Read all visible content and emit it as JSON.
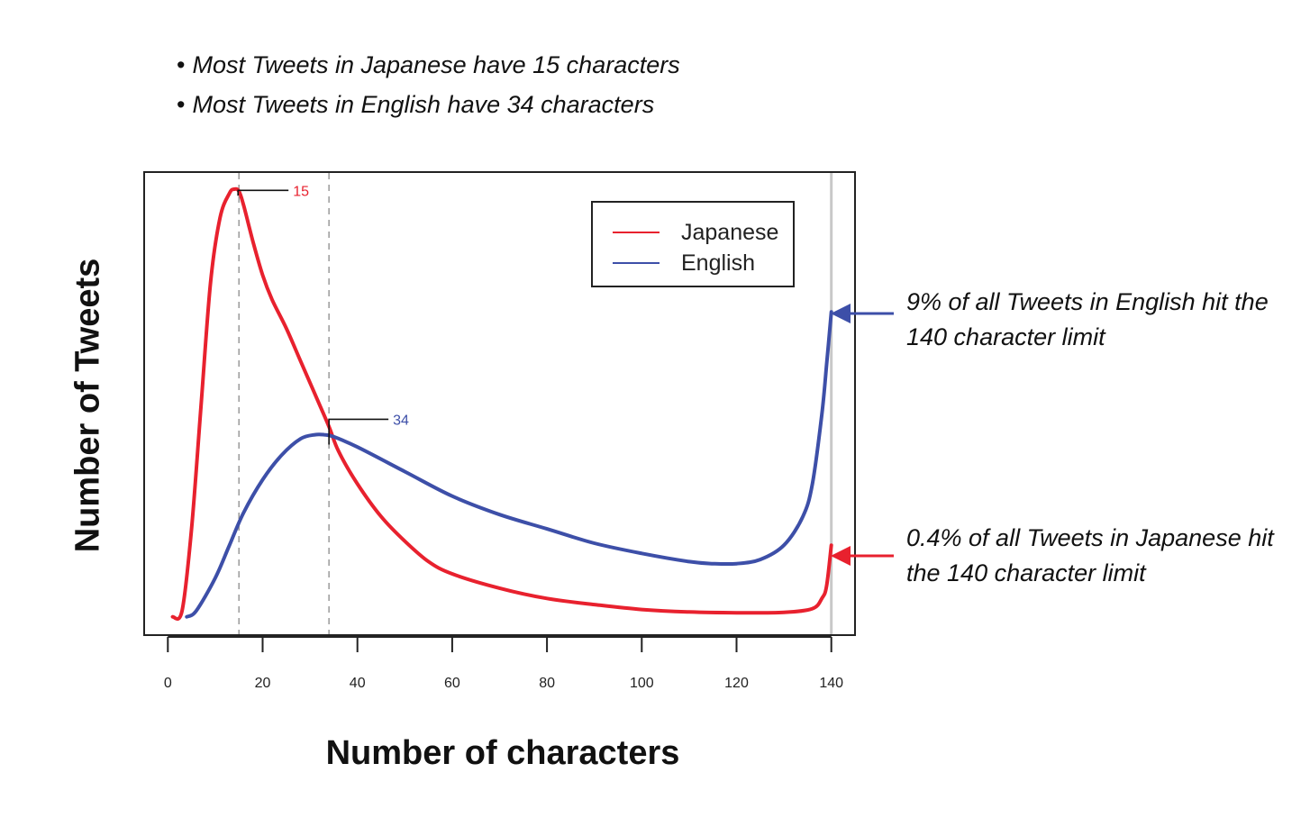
{
  "bullets": [
    "Most Tweets in Japanese have 15 characters",
    "Most Tweets in English have 34 characters"
  ],
  "colors": {
    "japanese": "#e8212e",
    "english": "#3d4fa8",
    "axis": "#222222",
    "guide": "#9a9a9a"
  },
  "chart_data": {
    "type": "line",
    "xlabel": "Number of characters",
    "ylabel": "Number of Tweets",
    "xlim": [
      -5,
      145
    ],
    "ylim": [
      0,
      105
    ],
    "xticks": [
      "0",
      "20",
      "40",
      "60",
      "80",
      "100",
      "120",
      "140"
    ],
    "yticks_shown": false,
    "grid": false,
    "legend": {
      "position": "top-right",
      "entries": [
        "Japanese",
        "English"
      ]
    },
    "series": [
      {
        "name": "Japanese",
        "x": [
          1,
          3,
          5,
          7,
          9,
          11,
          13,
          14,
          15,
          16,
          18,
          20,
          22,
          25,
          28,
          31,
          34,
          36,
          40,
          45,
          50,
          55,
          60,
          70,
          80,
          90,
          100,
          110,
          120,
          130,
          136,
          138,
          139,
          140
        ],
        "y": [
          0.5,
          2,
          22,
          52,
          82,
          98,
          104,
          105,
          104.5,
          101,
          92,
          84,
          78,
          71,
          63,
          55,
          47,
          41,
          33,
          25,
          19,
          14,
          11,
          7.5,
          5,
          3.5,
          2.3,
          1.7,
          1.5,
          1.6,
          2.5,
          5,
          8,
          18
        ]
      },
      {
        "name": "English",
        "x": [
          4,
          6,
          10,
          13,
          16,
          20,
          24,
          28,
          31,
          33,
          35,
          40,
          50,
          60,
          70,
          80,
          90,
          100,
          110,
          115,
          120,
          125,
          130,
          134,
          136,
          138,
          139,
          140
        ],
        "y": [
          0.5,
          2,
          10,
          18,
          26,
          34,
          40,
          44,
          45,
          45,
          44.5,
          42,
          36,
          30,
          25.5,
          22,
          18.5,
          16,
          14,
          13.5,
          13.5,
          14.5,
          18,
          25,
          33,
          50,
          62,
          75
        ]
      }
    ],
    "annotations": [
      {
        "text": "15",
        "series": "Japanese",
        "x": 15,
        "y": 104.5
      },
      {
        "text": "34",
        "series": "English",
        "x": 34,
        "y": 47
      }
    ],
    "reference_lines": [
      {
        "x": 15
      },
      {
        "x": 34
      },
      {
        "x": 140
      }
    ]
  },
  "side_annotations": {
    "english": "9% of all Tweets in English hit the 140 character limit",
    "japanese": "0.4% of all Tweets in Japanese hit the 140 character limit"
  }
}
